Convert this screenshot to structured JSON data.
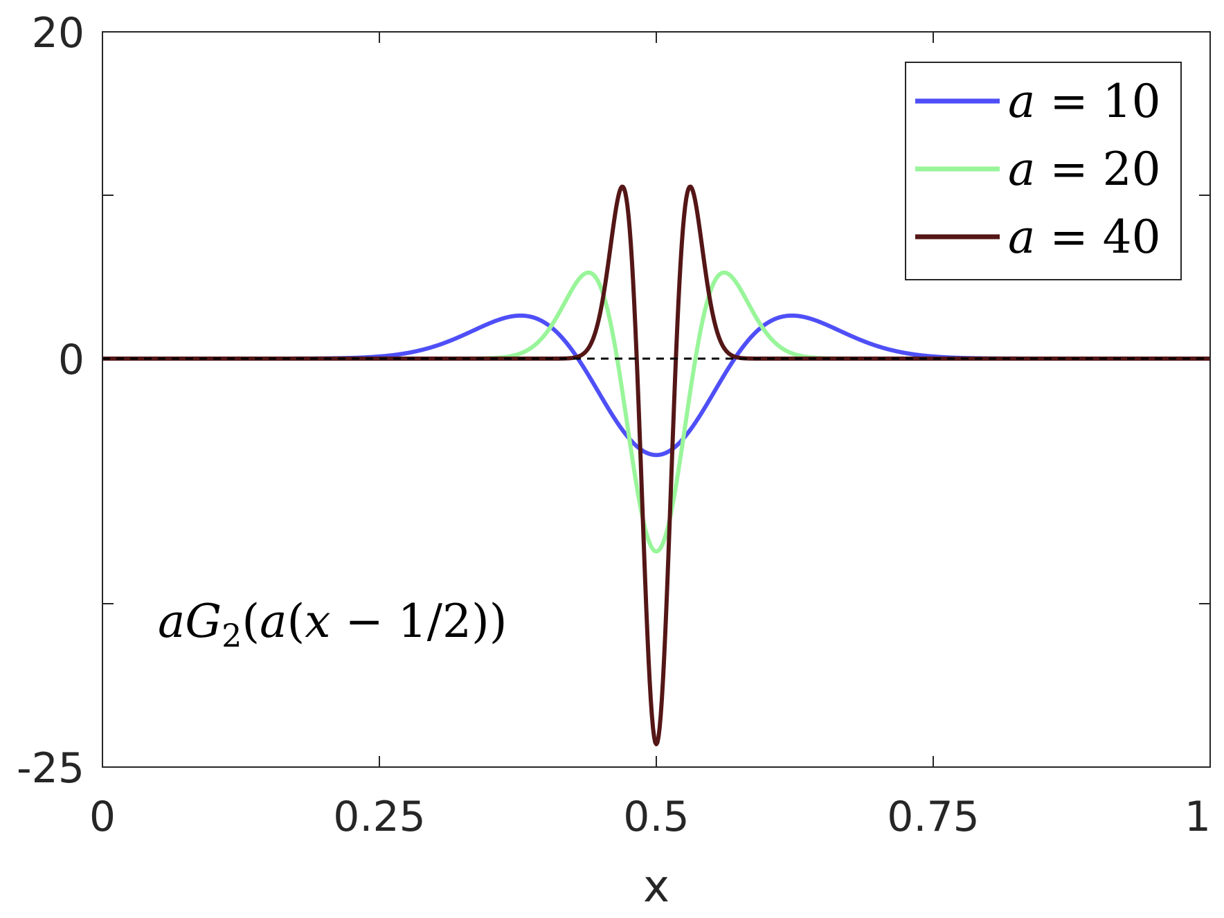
{
  "chart_data": {
    "type": "line",
    "xlabel": "x",
    "ylabel": "",
    "xlim": [
      0,
      1
    ],
    "ylim": [
      -25,
      20
    ],
    "xticks": [
      "0",
      "0.25",
      "0.5",
      "0.75",
      "1"
    ],
    "yticks": [
      "20",
      "0",
      "-25"
    ],
    "grid": false,
    "legend_position": "top-right",
    "annotation": "aG₂(a(x − 1/2))",
    "zero_line": {
      "style": "dashed",
      "color": "#000000"
    },
    "series": [
      {
        "name": "a = 10",
        "a": 10,
        "color": "#4f4ff7",
        "x": [
          0,
          0.2,
          0.25,
          0.3,
          0.35,
          0.378,
          0.4,
          0.43,
          0.45,
          0.47,
          0.5,
          0.53,
          0.55,
          0.57,
          0.6,
          0.622,
          0.65,
          0.7,
          0.75,
          0.8,
          1
        ],
        "y": [
          0,
          0.05,
          0.27,
          0.97,
          2.07,
          2.66,
          2.09,
          0.04,
          -1.51,
          -4.15,
          -5.9,
          -4.15,
          -1.51,
          0.04,
          2.09,
          2.66,
          2.07,
          0.97,
          0.27,
          0.05,
          0
        ]
      },
      {
        "name": "a = 20",
        "a": 20,
        "color": "#99f59a",
        "x": [
          0,
          0.35,
          0.4,
          0.439,
          0.46,
          0.48,
          0.5,
          0.52,
          0.54,
          0.561,
          0.6,
          0.65,
          1
        ],
        "y": [
          0,
          0.23,
          3.5,
          5.3,
          0.8,
          -7.6,
          -11.8,
          -7.6,
          0.8,
          5.3,
          3.5,
          0.23,
          0
        ],
        "fine": true
      },
      {
        "name": "a = 40",
        "a": 40,
        "color": "#541616",
        "x": [
          0,
          0.42,
          0.45,
          0.469,
          0.48,
          0.49,
          0.5,
          0.51,
          0.52,
          0.531,
          0.55,
          0.58,
          1
        ],
        "y": [
          0,
          0.4,
          7.9,
          10.6,
          1.7,
          -15.5,
          -23.6,
          -15.5,
          1.7,
          10.6,
          7.9,
          0.4,
          0
        ],
        "fine": true
      }
    ]
  }
}
